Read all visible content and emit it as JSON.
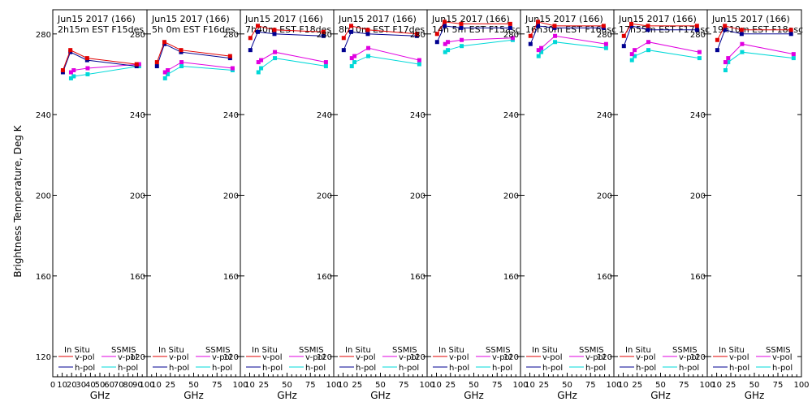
{
  "chart_data": {
    "type": "line",
    "ylabel": "Brightness Temperature, Deg K",
    "xlabel": "GHz",
    "xlim": [
      0,
      100
    ],
    "ylim": [
      110,
      292
    ],
    "yticks": [
      120,
      160,
      200,
      240,
      280
    ],
    "xticks_first": [
      0,
      10,
      20,
      30,
      40,
      50,
      60,
      70,
      80,
      90,
      100
    ],
    "xticks_rest": [
      10,
      25,
      50,
      75,
      100
    ],
    "legend": {
      "in_situ": "In Situ",
      "ssmis": "SSMIS",
      "vpol": "v-pol",
      "hpol": "h-pol"
    },
    "colors": {
      "insitu_v": "#e00000",
      "insitu_h": "#000090",
      "ssmis_v": "#e000e0",
      "ssmis_h": "#00d8d8"
    },
    "panels": [
      {
        "title1": "Jun15 2017 (166)",
        "title2": "2h15m EST F15des",
        "x_insitu": [
          10.7,
          18.7,
          36.5,
          89
        ],
        "insitu_v": [
          262,
          272,
          268,
          265
        ],
        "insitu_h": [
          261,
          271,
          267,
          264
        ],
        "x_ssmis": [
          19.35,
          22.235,
          37,
          91.655
        ],
        "ssmis_v": [
          261,
          262,
          263,
          265
        ],
        "ssmis_h": [
          258,
          259,
          260,
          264
        ]
      },
      {
        "title1": "Jun15 2017 (166)",
        "title2": "5h 0m  EST F16des",
        "x_insitu": [
          10.7,
          18.7,
          36.5,
          89
        ],
        "insitu_v": [
          266,
          276,
          272,
          269
        ],
        "insitu_h": [
          264,
          275,
          271,
          268
        ],
        "x_ssmis": [
          19.35,
          22.235,
          37,
          91.655
        ],
        "ssmis_v": [
          261,
          262,
          266,
          263
        ],
        "ssmis_h": [
          258,
          260,
          264,
          262
        ]
      },
      {
        "title1": "Jun15 2017 (166)",
        "title2": "7h40m  EST F18des",
        "x_insitu": [
          10.7,
          18.7,
          36.5,
          89
        ],
        "insitu_v": [
          278,
          284,
          282,
          281
        ],
        "insitu_h": [
          272,
          281,
          280,
          279
        ],
        "x_ssmis": [
          19.35,
          22.235,
          37,
          91.655
        ],
        "ssmis_v": [
          266,
          267,
          271,
          266
        ],
        "ssmis_h": [
          261,
          263,
          268,
          264
        ]
      },
      {
        "title1": "Jun15 2017 (166)",
        "title2": "8h10m  EST F17des",
        "x_insitu": [
          10.7,
          18.7,
          36.5,
          89
        ],
        "insitu_v": [
          278,
          284,
          282,
          280
        ],
        "insitu_h": [
          272,
          281,
          280,
          279
        ],
        "x_ssmis": [
          19.35,
          22.235,
          37,
          91.655
        ],
        "ssmis_v": [
          268,
          269,
          273,
          267
        ],
        "ssmis_h": [
          264,
          266,
          269,
          265
        ]
      },
      {
        "title1": "Jun15 2017 (166)",
        "title2": "14h 5m  EST F15asc",
        "x_insitu": [
          10.7,
          18.7,
          36.5,
          89
        ],
        "insitu_v": [
          280,
          286,
          285,
          285
        ],
        "insitu_h": [
          276,
          284,
          283,
          283
        ],
        "x_ssmis": [
          19.35,
          22.235,
          37,
          91.655
        ],
        "ssmis_v": [
          275,
          276,
          277,
          278
        ],
        "ssmis_h": [
          271,
          272,
          274,
          277
        ]
      },
      {
        "title1": "Jun15 2017 (166)",
        "title2": "16h30m  EST F16asc",
        "x_insitu": [
          10.7,
          18.7,
          36.5,
          89
        ],
        "insitu_v": [
          279,
          286,
          284,
          284
        ],
        "insitu_h": [
          275,
          284,
          283,
          283
        ],
        "x_ssmis": [
          19.35,
          22.235,
          37,
          91.655
        ],
        "ssmis_v": [
          272,
          273,
          279,
          275
        ],
        "ssmis_h": [
          269,
          271,
          276,
          273
        ]
      },
      {
        "title1": "Jun15 2017 (166)",
        "title2": "17h55m  EST F17asc",
        "x_insitu": [
          10.7,
          18.7,
          36.5,
          89
        ],
        "insitu_v": [
          279,
          285,
          284,
          284
        ],
        "insitu_h": [
          274,
          284,
          282,
          282
        ],
        "x_ssmis": [
          19.35,
          22.235,
          37,
          91.655
        ],
        "ssmis_v": [
          270,
          272,
          276,
          271
        ],
        "ssmis_h": [
          267,
          269,
          272,
          268
        ]
      },
      {
        "title1": "Jun15 2017 (166)",
        "title2": "19h10m  EST F18asc",
        "x_insitu": [
          10.7,
          18.7,
          36.5,
          89
        ],
        "insitu_v": [
          277,
          284,
          282,
          282
        ],
        "insitu_h": [
          272,
          282,
          280,
          280
        ],
        "x_ssmis": [
          19.35,
          22.235,
          37,
          91.655
        ],
        "ssmis_v": [
          266,
          268,
          275,
          270
        ],
        "ssmis_h": [
          262,
          266,
          271,
          268
        ]
      }
    ]
  }
}
